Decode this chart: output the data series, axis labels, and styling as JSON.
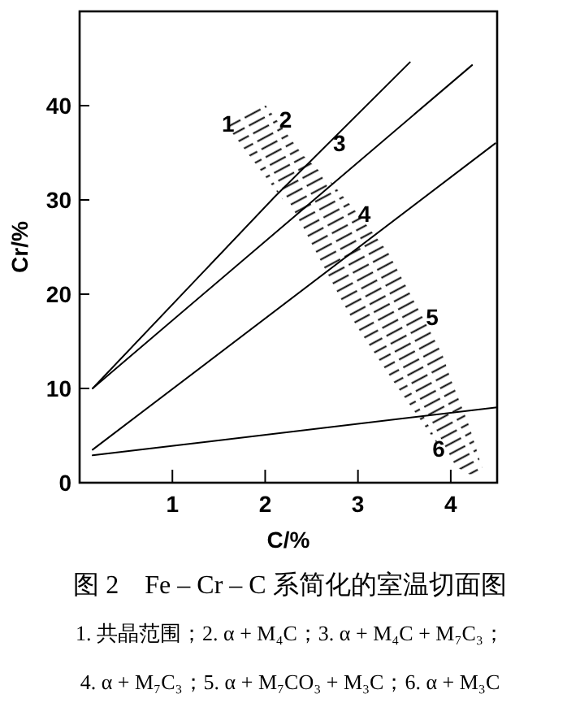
{
  "chart_data": {
    "type": "line",
    "title": "图 2　Fe – Cr – C 系简化的室温切面图",
    "xlabel": "C/%",
    "ylabel": "Cr/%",
    "xlim": [
      0,
      4.5
    ],
    "ylim": [
      0,
      50
    ],
    "xticks": [
      1,
      2,
      3,
      4
    ],
    "yticks": [
      0,
      10,
      20,
      30,
      40
    ],
    "series": [
      {
        "color": "#000000",
        "x": [
          0.14,
          2.1,
          3.56
        ],
        "values": [
          10,
          30.3,
          44.6
        ]
      },
      {
        "color": "#000000",
        "x": [
          0.14,
          4.23
        ],
        "values": [
          10,
          44.3
        ]
      },
      {
        "color": "#000000",
        "x": [
          0.14,
          4.48
        ],
        "values": [
          3.5,
          36
        ]
      },
      {
        "color": "#000000",
        "x": [
          0.14,
          4.5
        ],
        "values": [
          2.9,
          8
        ]
      },
      {
        "type": "area",
        "color": "#000000",
        "x": [
          1.6,
          2.0,
          2.4,
          2.7,
          3.0,
          3.4,
          3.8,
          4.0,
          4.2,
          4.35
        ],
        "values": [
          null,
          null,
          null,
          null,
          null,
          null,
          null,
          null,
          null,
          null
        ],
        "lower": [
          37.7,
          32.5,
          27.3,
          21.3,
          16.4,
          10.5,
          4.9,
          2.0,
          0.9,
          0.8
        ],
        "upper": [
          38.1,
          40.1,
          34.8,
          32,
          28.5,
          23.5,
          16.8,
          11,
          6,
          1.2
        ]
      }
    ],
    "annotations": [
      {
        "text": "1",
        "x": 1.6,
        "y": 38.1
      },
      {
        "text": "2",
        "x": 2.22,
        "y": 38.5
      },
      {
        "text": "3",
        "x": 2.8,
        "y": 36.0
      },
      {
        "text": "4",
        "x": 3.07,
        "y": 28.5
      },
      {
        "text": "5",
        "x": 3.8,
        "y": 17.6
      },
      {
        "text": "6",
        "x": 3.87,
        "y": 3.6
      },
      "1. 共晶范围；2. α + M₄C；3. α + M₄C + M₇C₃；",
      "4. α + M₇C₃；5. α + M₇CO₃ + M₃C；6. α + M₃C"
    ]
  }
}
